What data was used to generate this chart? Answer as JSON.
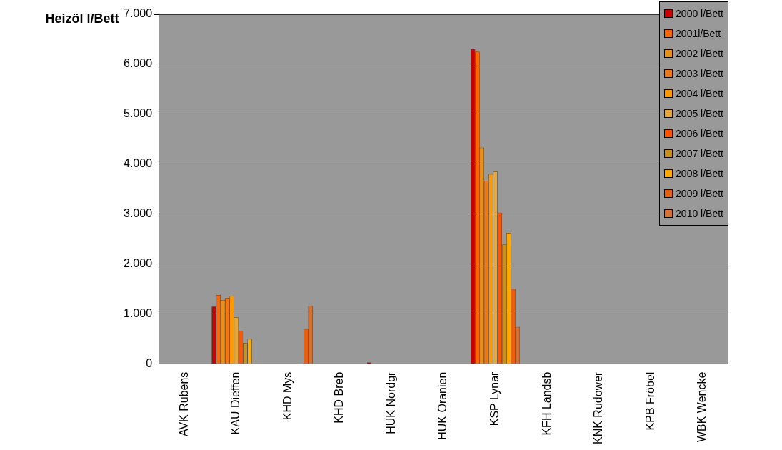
{
  "chart_data": {
    "type": "bar",
    "ylabel": "Heizöl l/Bett",
    "categories": [
      "AVK Rubens",
      "KAU Dieffen",
      "KHD Mys",
      "KHD Breb",
      "HUK Nordgr",
      "HUK Oranien",
      "KSP Lynar",
      "KFH Landsb",
      "KNK Rudower",
      "KPB Fröbel",
      "WBK Wencke"
    ],
    "series": [
      {
        "name": "2000 l/Bett",
        "color": "#cc0000",
        "values": [
          0,
          1150,
          0,
          0,
          30,
          0,
          6300,
          0,
          0,
          0,
          0
        ]
      },
      {
        "name": "2001l/Bett",
        "color": "#ff6600",
        "values": [
          0,
          1380,
          0,
          0,
          0,
          0,
          6250,
          0,
          0,
          0,
          0
        ]
      },
      {
        "name": "2002 l/Bett",
        "color": "#e8901c",
        "values": [
          0,
          1280,
          0,
          0,
          0,
          0,
          4330,
          0,
          0,
          0,
          0
        ]
      },
      {
        "name": "2003 l/Bett",
        "color": "#f07818",
        "values": [
          0,
          1320,
          0,
          0,
          0,
          0,
          3670,
          0,
          0,
          0,
          0
        ]
      },
      {
        "name": "2004 l/Bett",
        "color": "#ff9900",
        "values": [
          0,
          1360,
          0,
          0,
          0,
          0,
          3800,
          0,
          0,
          0,
          0
        ]
      },
      {
        "name": "2005 l/Bett",
        "color": "#e8a838",
        "values": [
          0,
          930,
          0,
          0,
          0,
          0,
          3850,
          0,
          0,
          0,
          0
        ]
      },
      {
        "name": "2006 l/Bett",
        "color": "#ff5500",
        "values": [
          0,
          660,
          0,
          0,
          0,
          0,
          3030,
          0,
          0,
          0,
          0
        ]
      },
      {
        "name": "2007 l/Bett",
        "color": "#c8901c",
        "values": [
          0,
          420,
          0,
          0,
          0,
          0,
          2390,
          0,
          0,
          0,
          0
        ]
      },
      {
        "name": "2008 l/Bett",
        "color": "#ffaa00",
        "values": [
          0,
          500,
          0,
          0,
          0,
          0,
          2620,
          0,
          0,
          0,
          0
        ]
      },
      {
        "name": "2009 l/Bett",
        "color": "#e86010",
        "values": [
          0,
          0,
          700,
          0,
          0,
          0,
          1500,
          0,
          0,
          0,
          0
        ]
      },
      {
        "name": "2010 l/Bett",
        "color": "#d87030",
        "values": [
          0,
          0,
          1160,
          0,
          0,
          0,
          740,
          0,
          0,
          0,
          0
        ]
      }
    ],
    "ylim": [
      0,
      7000
    ],
    "yticks": [
      {
        "value": 0,
        "label": "0"
      },
      {
        "value": 1000,
        "label": "1.000"
      },
      {
        "value": 2000,
        "label": "2.000"
      },
      {
        "value": 3000,
        "label": "3.000"
      },
      {
        "value": 4000,
        "label": "4.000"
      },
      {
        "value": 5000,
        "label": "5.000"
      },
      {
        "value": 6000,
        "label": "6.000"
      },
      {
        "value": 7000,
        "label": "7.000"
      }
    ],
    "grid": "y",
    "legend": "top right"
  }
}
